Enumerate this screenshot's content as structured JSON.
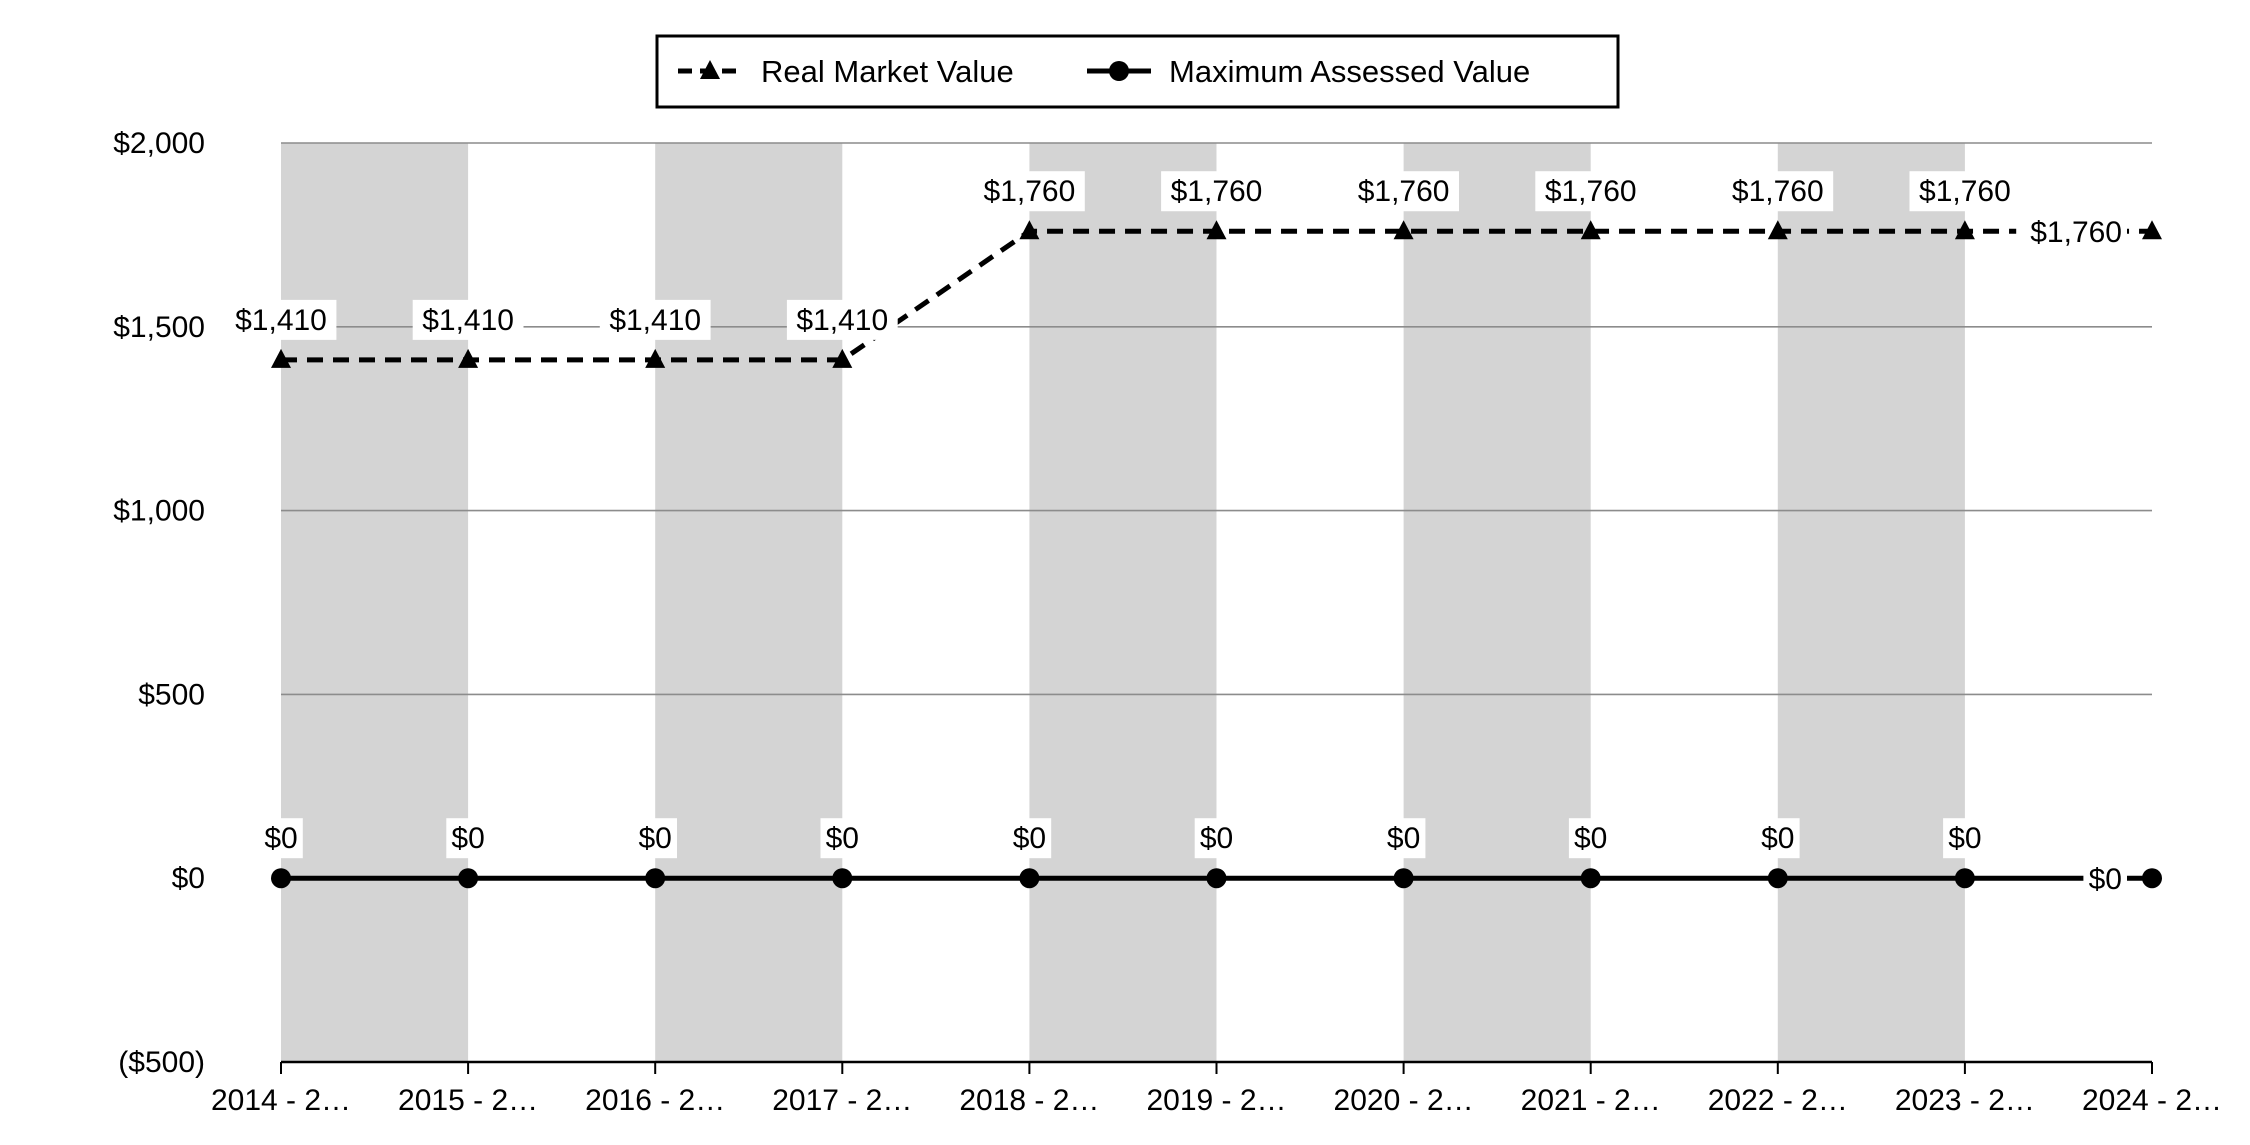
{
  "chart_data": {
    "type": "line",
    "categories": [
      "2014 - 2…",
      "2015 - 2…",
      "2016 - 2…",
      "2017 - 2…",
      "2018 - 2…",
      "2019 - 2…",
      "2020 - 2…",
      "2021 - 2…",
      "2022 - 2…",
      "2023 - 2…",
      "2024 - 2…"
    ],
    "series": [
      {
        "name": "Real Market Value",
        "values": [
          1410,
          1410,
          1410,
          1410,
          1760,
          1760,
          1760,
          1760,
          1760,
          1760,
          1760
        ],
        "labels": [
          "$1,410",
          "$1,410",
          "$1,410",
          "$1,410",
          "$1,760",
          "$1,760",
          "$1,760",
          "$1,760",
          "$1,760",
          "$1,760",
          "$1,760"
        ],
        "line_style": "dashed",
        "marker": "triangle",
        "color": "#000000"
      },
      {
        "name": "Maximum Assessed Value",
        "values": [
          0,
          0,
          0,
          0,
          0,
          0,
          0,
          0,
          0,
          0,
          0
        ],
        "labels": [
          "$0",
          "$0",
          "$0",
          "$0",
          "$0",
          "$0",
          "$0",
          "$0",
          "$0",
          "$0",
          "$0"
        ],
        "line_style": "solid",
        "marker": "circle",
        "color": "#000000"
      }
    ],
    "ylim": [
      -500,
      2000
    ],
    "y_ticks": [
      2000,
      1500,
      1000,
      500,
      0,
      -500
    ],
    "y_tick_labels": [
      "$2,000",
      "$1,500",
      "$1,000",
      "$500",
      "$0",
      "($500)"
    ],
    "grid": true,
    "alternating_bands": true,
    "band_color": "#d4d4d4",
    "legend_position": "top-center"
  }
}
